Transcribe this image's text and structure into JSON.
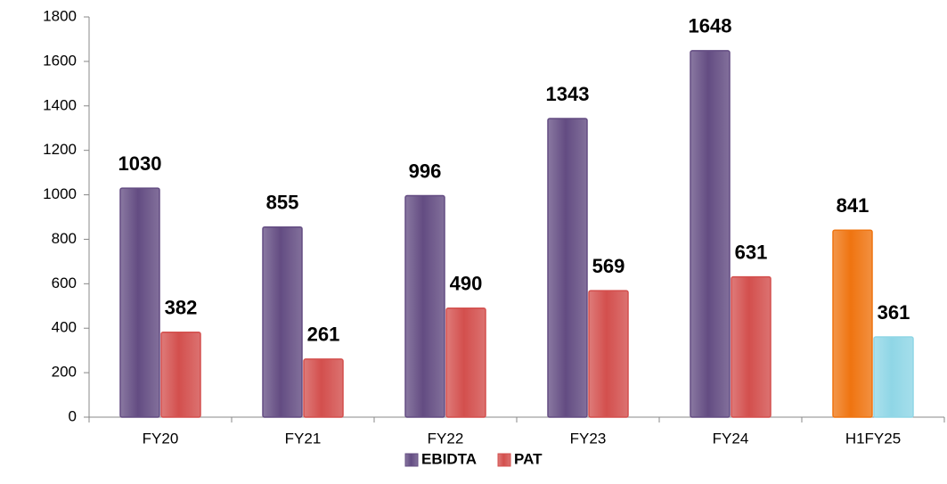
{
  "chart_data": {
    "type": "bar",
    "categories": [
      "FY20",
      "FY21",
      "FY22",
      "FY23",
      "FY24",
      "H1FY25"
    ],
    "series": [
      {
        "name": "EBIDTA",
        "color": "#634c82",
        "colors": [
          "#634c82",
          "#634c82",
          "#634c82",
          "#634c82",
          "#634c82",
          "#ef7410"
        ],
        "values": [
          1030,
          855,
          996,
          1343,
          1648,
          841
        ]
      },
      {
        "name": "PAT",
        "color": "#d34f4d",
        "colors": [
          "#d34f4d",
          "#d34f4d",
          "#d34f4d",
          "#d34f4d",
          "#d34f4d",
          "#8fd6e6"
        ],
        "values": [
          382,
          261,
          490,
          569,
          631,
          361
        ]
      }
    ],
    "ylim": [
      0,
      1800
    ],
    "yticks": [
      0,
      200,
      400,
      600,
      800,
      1000,
      1200,
      1400,
      1600,
      1800
    ],
    "grid": false,
    "legend": "bottom"
  }
}
